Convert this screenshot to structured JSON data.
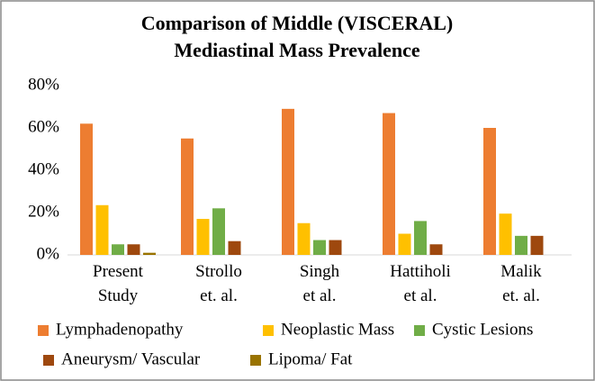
{
  "chart_data": {
    "type": "bar",
    "title": "Comparison of Middle (VISCERAL)\nMediastinal Mass Prevalence",
    "categories": [
      "Present\nStudy",
      "Strollo\net. al.",
      "Singh\net al.",
      "Hattiholi\net al.",
      "Malik\net. al."
    ],
    "series": [
      {
        "name": "Lymphadenopathy",
        "color": "#ED7D31",
        "values": [
          62,
          55,
          69,
          67,
          60
        ]
      },
      {
        "name": "Neoplastic Mass",
        "color": "#FFC000",
        "values": [
          23.5,
          17,
          15,
          10,
          19.5
        ]
      },
      {
        "name": "Cystic Lesions",
        "color": "#70AD47",
        "values": [
          5,
          22,
          7,
          16,
          9
        ]
      },
      {
        "name": "Aneurysm/ Vascular",
        "color": "#9E480E",
        "values": [
          5,
          6.5,
          7,
          5,
          9
        ]
      },
      {
        "name": "Lipoma/ Fat",
        "color": "#997300",
        "values": [
          1,
          0,
          0,
          0,
          0
        ]
      }
    ],
    "ylim": [
      0,
      80
    ],
    "yticks": [
      {
        "value": 0,
        "label": "0%"
      },
      {
        "value": 20,
        "label": "20%"
      },
      {
        "value": 40,
        "label": "40%"
      },
      {
        "value": 60,
        "label": "60%"
      },
      {
        "value": 80,
        "label": "80%"
      }
    ],
    "grid": false,
    "legend": "bottom"
  }
}
